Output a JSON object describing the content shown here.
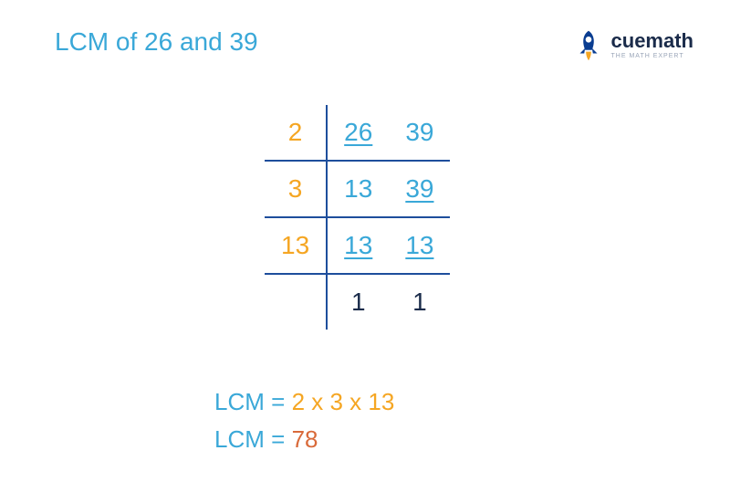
{
  "title": "LCM of 26 and 39",
  "logo": {
    "brand": "cuemath",
    "tagline": "THE MATH EXPERT",
    "rocket_body_color": "#0a3d91",
    "rocket_flame_color": "#f5a623"
  },
  "colors": {
    "title_color": "#3aa8d8",
    "divisor_color": "#f5a623",
    "value_color": "#3aa8d8",
    "line_color": "#1e4e9c",
    "lcm_label_color": "#3aa8d8",
    "lcm_expr_color": "#f5a623",
    "lcm_result_color": "#d96a3a",
    "final_one_color": "#1a2b4a"
  },
  "division": {
    "rows": [
      {
        "divisor": "2",
        "a": "26",
        "b": "39",
        "a_underlined": true,
        "b_underlined": false
      },
      {
        "divisor": "3",
        "a": "13",
        "b": "39",
        "a_underlined": false,
        "b_underlined": true
      },
      {
        "divisor": "13",
        "a": "13",
        "b": "13",
        "a_underlined": true,
        "b_underlined": true
      }
    ],
    "final": {
      "a": "1",
      "b": "1"
    }
  },
  "result": {
    "label": "LCM",
    "eq": "=",
    "expression": "2 x 3 x 13",
    "value": "78"
  }
}
